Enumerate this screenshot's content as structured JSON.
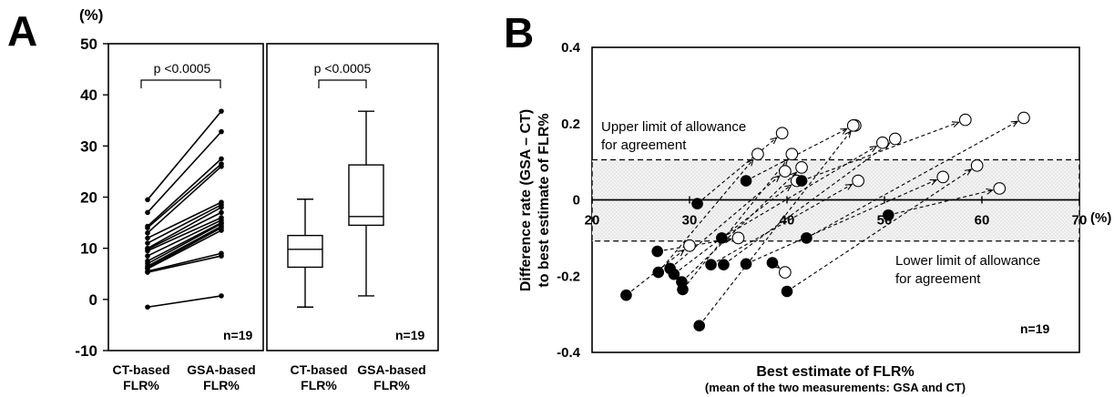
{
  "panel_labels": {
    "a": "A",
    "b": "B"
  },
  "colors": {
    "ink": "#000000",
    "band": "#ececec",
    "open_fill": "#ffffff"
  },
  "chart_data": [
    {
      "type": "line",
      "panel": "A-left",
      "ylabel": "(%)",
      "ylim": [
        -10,
        50
      ],
      "yticks": [
        "50",
        "40",
        "30",
        "20",
        "10",
        "0",
        "-10"
      ],
      "categories": [
        "CT-based FLR%",
        "GSA-based FLR%"
      ],
      "category_lines": [
        [
          "CT-based",
          "FLR%"
        ],
        [
          "GSA-based",
          "FLR%"
        ]
      ],
      "pvalue": "p <0.0005",
      "n_label": "n=19",
      "pairs": [
        [
          19.5,
          36.8
        ],
        [
          17.0,
          32.8
        ],
        [
          14.3,
          27.5
        ],
        [
          14.0,
          26.5
        ],
        [
          13.0,
          26.0
        ],
        [
          12.0,
          19.0
        ],
        [
          11.0,
          18.5
        ],
        [
          10.0,
          18.0
        ],
        [
          9.8,
          17.0
        ],
        [
          9.5,
          16.0
        ],
        [
          8.5,
          15.5
        ],
        [
          7.5,
          15.0
        ],
        [
          7.0,
          14.8
        ],
        [
          6.5,
          14.3
        ],
        [
          6.2,
          14.0
        ],
        [
          6.0,
          13.5
        ],
        [
          5.5,
          9.0
        ],
        [
          5.3,
          8.5
        ],
        [
          -1.5,
          0.7
        ]
      ]
    },
    {
      "type": "box",
      "panel": "A-right",
      "ylim": [
        -10,
        50
      ],
      "categories": [
        "CT-based FLR%",
        "GSA-based FLR%"
      ],
      "category_lines": [
        [
          "CT-based",
          "FLR%"
        ],
        [
          "GSA-based",
          "FLR%"
        ]
      ],
      "pvalue": "p <0.0005",
      "n_label": "n=19",
      "boxes": [
        {
          "min": -1.5,
          "q1": 6.3,
          "median": 9.8,
          "q3": 12.5,
          "max": 19.6
        },
        {
          "min": 0.7,
          "q1": 14.5,
          "median": 16.2,
          "q3": 26.3,
          "max": 36.8
        }
      ]
    },
    {
      "type": "scatter",
      "panel": "B",
      "xlabel": "Best estimate of FLR%",
      "xlabel_sub": "(mean of the two measurements: GSA and CT)",
      "ylabel_lines": [
        "Difference rate (GSA – CT)",
        "to best estimate of FLR%"
      ],
      "xlim": [
        20,
        70
      ],
      "ylim": [
        -0.4,
        0.4
      ],
      "xticks": [
        "20",
        "30",
        "40",
        "50",
        "60",
        "70"
      ],
      "x_unit": "(%)",
      "yticks": [
        "0.4",
        "0.2",
        "0",
        "-0.2",
        "-0.4"
      ],
      "upper_limit": 0.105,
      "lower_limit": -0.108,
      "upper_label": [
        "Upper limit of allowance",
        "for agreement"
      ],
      "lower_label": [
        "Lower limit of allowance",
        "for agreement"
      ],
      "n_label": "n=19",
      "grid": false,
      "series": [
        {
          "name": "CT",
          "marker": "filled"
        },
        {
          "name": "GSA",
          "marker": "open"
        }
      ],
      "arrows": [
        {
          "from": [
            23.5,
            -0.25
          ],
          "to": [
            30.0,
            -0.12
          ]
        },
        {
          "from": [
            26.7,
            -0.135
          ],
          "to": [
            35.0,
            -0.1
          ]
        },
        {
          "from": [
            26.8,
            -0.19
          ],
          "to": [
            37.0,
            0.12
          ]
        },
        {
          "from": [
            28.0,
            -0.18
          ],
          "to": [
            39.8,
            0.075
          ]
        },
        {
          "from": [
            28.4,
            -0.195
          ],
          "to": [
            41.0,
            0.05
          ]
        },
        {
          "from": [
            29.2,
            -0.215
          ],
          "to": [
            41.5,
            0.085
          ]
        },
        {
          "from": [
            29.3,
            -0.235
          ],
          "to": [
            40.5,
            0.12
          ]
        },
        {
          "from": [
            30.8,
            -0.01
          ],
          "to": [
            39.5,
            0.175
          ]
        },
        {
          "from": [
            31.0,
            -0.33
          ],
          "to": [
            47.0,
            0.195
          ]
        },
        {
          "from": [
            32.2,
            -0.17
          ],
          "to": [
            47.3,
            0.05
          ]
        },
        {
          "from": [
            33.3,
            -0.1
          ],
          "to": [
            49.8,
            0.15
          ]
        },
        {
          "from": [
            33.5,
            -0.17
          ],
          "to": [
            51.1,
            0.16
          ]
        },
        {
          "from": [
            35.8,
            0.05
          ],
          "to": [
            46.8,
            0.195
          ]
        },
        {
          "from": [
            35.8,
            -0.168
          ],
          "to": [
            56.0,
            0.06
          ]
        },
        {
          "from": [
            38.5,
            -0.165
          ],
          "to": [
            39.8,
            -0.19
          ]
        },
        {
          "from": [
            40.0,
            -0.24
          ],
          "to": [
            59.5,
            0.09
          ]
        },
        {
          "from": [
            41.5,
            0.05
          ],
          "to": [
            58.3,
            0.21
          ]
        },
        {
          "from": [
            42.0,
            -0.1
          ],
          "to": [
            64.3,
            0.215
          ]
        },
        {
          "from": [
            50.4,
            -0.04
          ],
          "to": [
            61.8,
            0.03
          ]
        }
      ]
    }
  ]
}
